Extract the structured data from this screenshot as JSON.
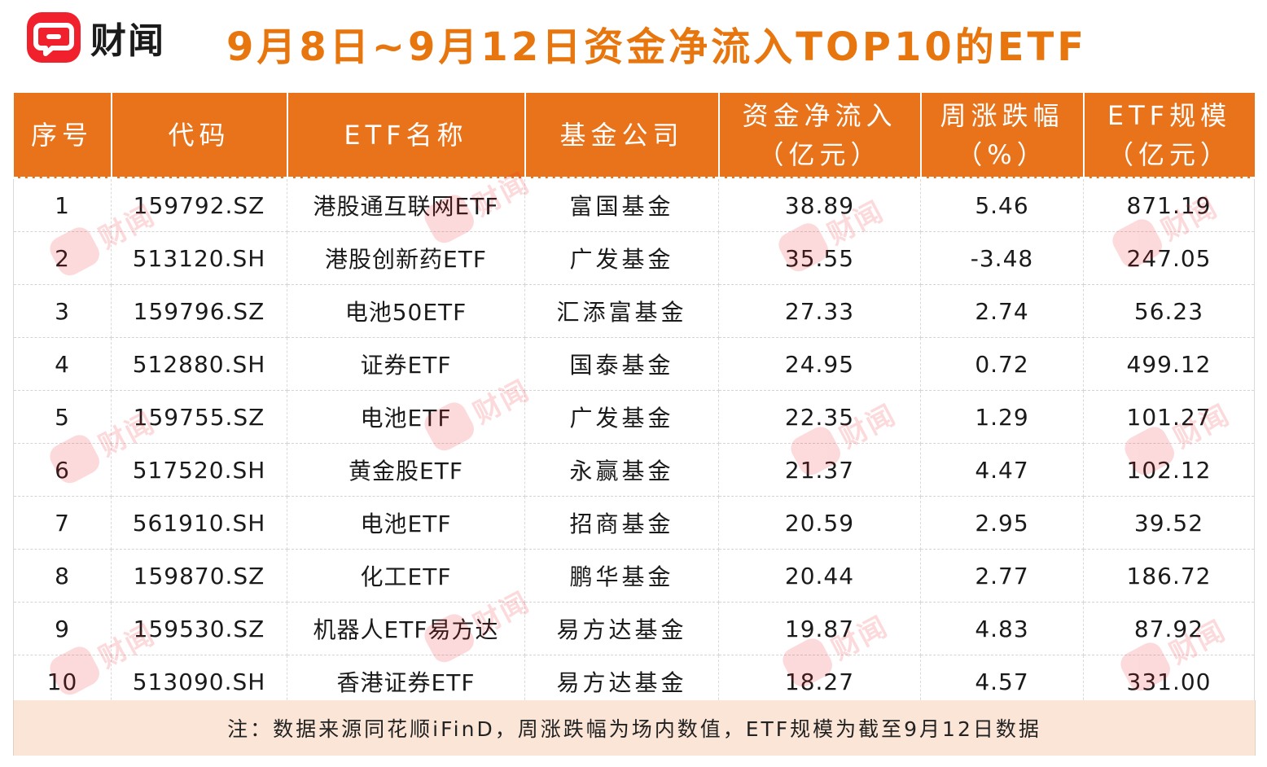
{
  "header": {
    "logo_text": "财闻",
    "title": "9月8日~9月12日资金净流入TOP10的ETF"
  },
  "table": {
    "columns": [
      {
        "line1": "序号",
        "line2": ""
      },
      {
        "line1": "代码",
        "line2": ""
      },
      {
        "line1": "ETF名称",
        "line2": ""
      },
      {
        "line1": "基金公司",
        "line2": ""
      },
      {
        "line1": "资金净流入",
        "line2": "（亿元）"
      },
      {
        "line1": "周涨跌幅",
        "line2": "（%）"
      },
      {
        "line1": "ETF规模",
        "line2": "（亿元）"
      }
    ],
    "rows": [
      {
        "rank": "1",
        "code": "159792.SZ",
        "name": "港股通互联网ETF",
        "company": "富国基金",
        "inflow": "38.89",
        "change": "5.46",
        "scale": "871.19"
      },
      {
        "rank": "2",
        "code": "513120.SH",
        "name": "港股创新药ETF",
        "company": "广发基金",
        "inflow": "35.55",
        "change": "-3.48",
        "scale": "247.05"
      },
      {
        "rank": "3",
        "code": "159796.SZ",
        "name": "电池50ETF",
        "company": "汇添富基金",
        "inflow": "27.33",
        "change": "2.74",
        "scale": "56.23"
      },
      {
        "rank": "4",
        "code": "512880.SH",
        "name": "证券ETF",
        "company": "国泰基金",
        "inflow": "24.95",
        "change": "0.72",
        "scale": "499.12"
      },
      {
        "rank": "5",
        "code": "159755.SZ",
        "name": "电池ETF",
        "company": "广发基金",
        "inflow": "22.35",
        "change": "1.29",
        "scale": "101.27"
      },
      {
        "rank": "6",
        "code": "517520.SH",
        "name": "黄金股ETF",
        "company": "永赢基金",
        "inflow": "21.37",
        "change": "4.47",
        "scale": "102.12"
      },
      {
        "rank": "7",
        "code": "561910.SH",
        "name": "电池ETF",
        "company": "招商基金",
        "inflow": "20.59",
        "change": "2.95",
        "scale": "39.52"
      },
      {
        "rank": "8",
        "code": "159870.SZ",
        "name": "化工ETF",
        "company": "鹏华基金",
        "inflow": "20.44",
        "change": "2.77",
        "scale": "186.72"
      },
      {
        "rank": "9",
        "code": "159530.SZ",
        "name": "机器人ETF易方达",
        "company": "易方达基金",
        "inflow": "19.87",
        "change": "4.83",
        "scale": "87.92"
      },
      {
        "rank": "10",
        "code": "513090.SH",
        "name": "香港证券ETF",
        "company": "易方达基金",
        "inflow": "18.27",
        "change": "4.57",
        "scale": "331.00"
      }
    ]
  },
  "footer": {
    "note": "注：数据来源同花顺iFinD，周涨跌幅为场内数值，ETF规模为截至9月12日数据"
  },
  "watermark": {
    "text": "财闻"
  },
  "colors": {
    "brand_red": "#f0202c",
    "header_orange": "#e8731b",
    "title_orange": "#e8760f",
    "note_bg": "#fbe5d6"
  }
}
